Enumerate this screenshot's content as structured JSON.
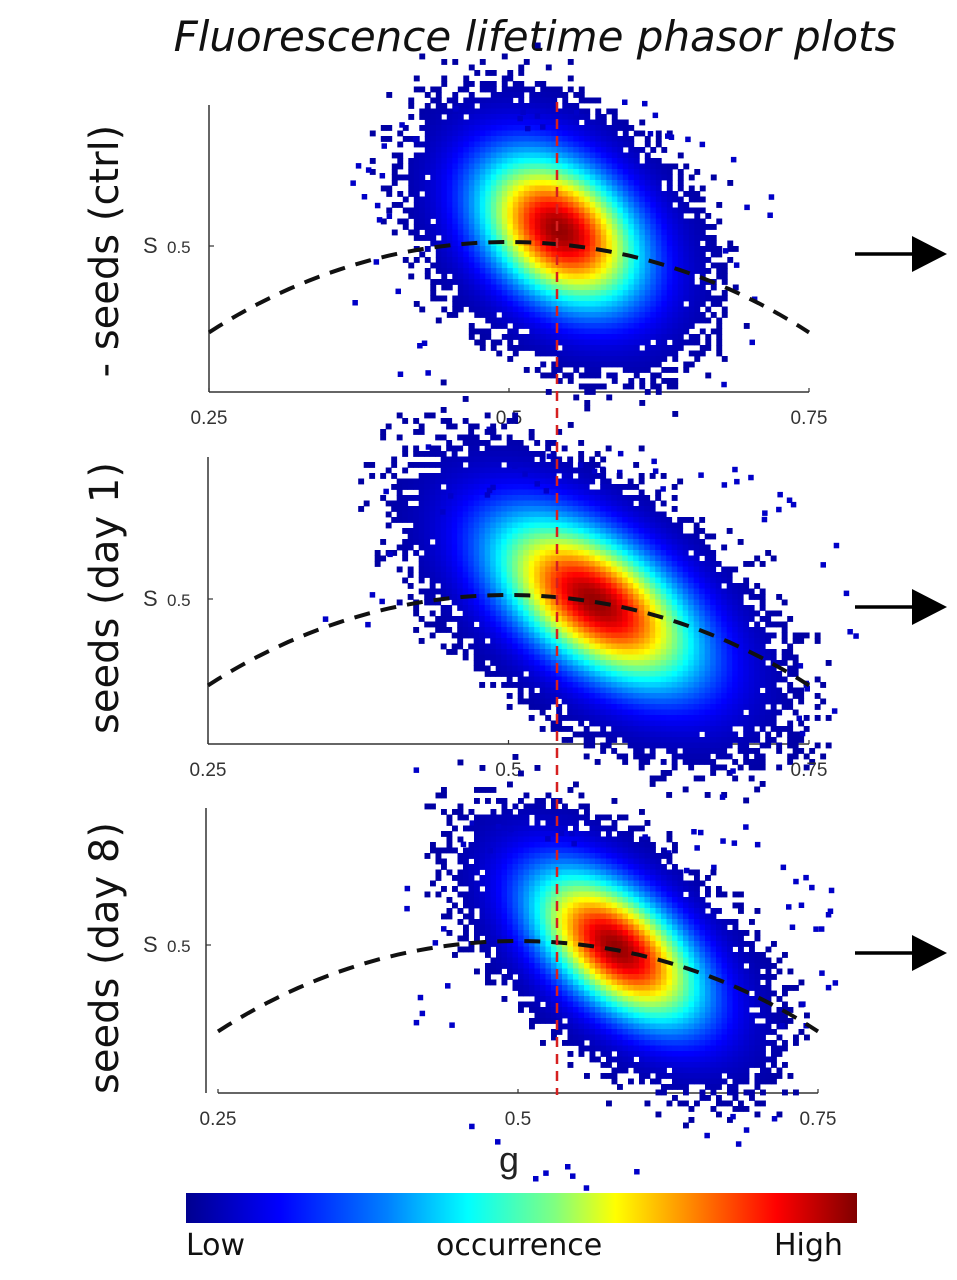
{
  "title": "Fluorescence lifetime phasor plots",
  "xlabel": "g",
  "colorbar": {
    "low": "Low",
    "mid": "occurrence",
    "high": "High",
    "colors": [
      "#00008f",
      "#0000ff",
      "#0080ff",
      "#00ffff",
      "#80ff80",
      "#ffff00",
      "#ff8000",
      "#ff0000",
      "#800000"
    ]
  },
  "reference_line_g": 0.54,
  "reference_line_color": "#d62020",
  "chart_data": [
    {
      "type": "heatmap",
      "row_label": "- seeds (ctrl)",
      "xlabel": "",
      "ylabel": "S",
      "y_tick_value": "0.5",
      "xlim": [
        0.25,
        0.75
      ],
      "x_ticks": [
        "0.25",
        "0.5",
        "0.75"
      ],
      "peak": {
        "g": 0.54,
        "s": 0.51
      },
      "spread": {
        "g_sd": 0.048,
        "s_sd": 0.03,
        "corr": -0.35
      },
      "curve": "universal semicircle (dashed)"
    },
    {
      "type": "heatmap",
      "row_label": "seeds (day 1)",
      "xlabel": "",
      "ylabel": "S",
      "y_tick_value": "0.5",
      "xlim": [
        0.25,
        0.75
      ],
      "x_ticks": [
        "0.25",
        "0.5",
        "0.75"
      ],
      "peak": {
        "g": 0.57,
        "s": 0.5
      },
      "spread": {
        "g_sd": 0.06,
        "s_sd": 0.033,
        "corr": -0.55
      },
      "curve": "universal semicircle (dashed)"
    },
    {
      "type": "heatmap",
      "row_label": "seeds (day 8)",
      "xlabel": "",
      "ylabel": "S",
      "y_tick_value": "0.5",
      "xlim": [
        0.25,
        0.75
      ],
      "x_ticks": [
        "0.25",
        "0.5",
        "0.75"
      ],
      "peak": {
        "g": 0.58,
        "s": 0.5
      },
      "spread": {
        "g_sd": 0.05,
        "s_sd": 0.03,
        "corr": -0.55
      },
      "curve": "universal semicircle (dashed)"
    }
  ]
}
